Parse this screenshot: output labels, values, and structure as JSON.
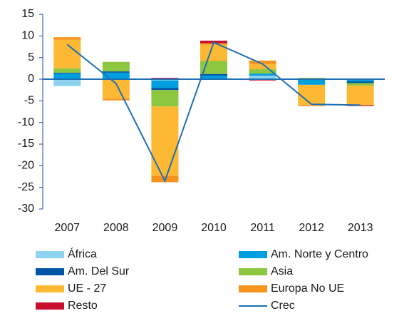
{
  "chart_data": {
    "type": "bar",
    "stacked": true,
    "categories": [
      "2007",
      "2008",
      "2009",
      "2010",
      "2011",
      "2012",
      "2013"
    ],
    "series": [
      {
        "name": "África",
        "color": "#8dd3f0",
        "values": [
          -1.6,
          0,
          -0.3,
          0,
          0.8,
          0,
          0
        ]
      },
      {
        "name": "Am. Norte y Centro",
        "color": "#00a0e0",
        "values": [
          1.3,
          1.5,
          -1.7,
          0.8,
          0.5,
          -1.3,
          -0.5
        ]
      },
      {
        "name": "Am. Del Sur",
        "color": "#0055a5",
        "values": [
          0.2,
          0.3,
          -0.5,
          0.4,
          0,
          0,
          -0.4
        ]
      },
      {
        "name": "Asia",
        "color": "#8dc63f",
        "values": [
          1.0,
          2.2,
          -3.8,
          3.0,
          1.0,
          0.3,
          -0.6
        ]
      },
      {
        "name": "UE - 27",
        "color": "#fdb933",
        "values": [
          6.6,
          -4.5,
          -16,
          3.8,
          1.2,
          -4.6,
          -4.5
        ]
      },
      {
        "name": "Europa No UE",
        "color": "#f7941d",
        "values": [
          0.6,
          -0.4,
          -1.5,
          0.3,
          0.8,
          -0.3,
          0
        ]
      },
      {
        "name": "Resto",
        "color": "#c8102e",
        "values": [
          0,
          0,
          0.3,
          0.6,
          -0.3,
          0,
          -0.2
        ]
      }
    ],
    "line": {
      "name": "Crec",
      "color": "#1f6fb5",
      "values": [
        8,
        -1,
        -23.5,
        8.5,
        3.5,
        -5.8,
        -6
      ]
    },
    "ylim": [
      -30,
      15
    ],
    "yticks": [
      -30,
      -25,
      -20,
      -15,
      -10,
      -5,
      0,
      5,
      10,
      15
    ]
  }
}
